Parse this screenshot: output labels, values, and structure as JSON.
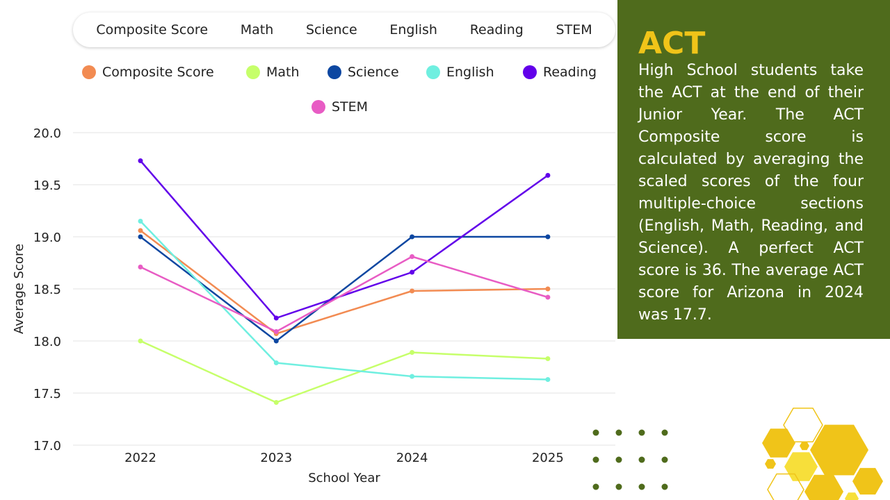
{
  "tabs": [
    "Composite Score",
    "Math",
    "Science",
    "English",
    "Reading",
    "STEM"
  ],
  "panel": {
    "title": "ACT",
    "body": "High School students take the ACT at the end of their Junior Year. The ACT Composite score is calculated by averaging the scaled scores of the four multiple-choice sections (English, Math, Reading, and Science). A perfect ACT score is 36. The average ACT score for Arizona in 2024 was 17.7."
  },
  "colors": {
    "panel_bg": "#4f6b1c",
    "title": "#f0c419",
    "dots": "#4f6b1c",
    "hex_gold": "#f0c419",
    "hex_light": "#f7df3a"
  },
  "chart_data": {
    "type": "line",
    "categories": [
      "2022",
      "2023",
      "2024",
      "2025"
    ],
    "xlabel": "School Year",
    "ylabel": "Average Score",
    "ylim": [
      17.0,
      20.0
    ],
    "yticks": [
      "17.0",
      "17.5",
      "18.0",
      "18.5",
      "19.0",
      "19.5",
      "20.0"
    ],
    "grid": true,
    "legend_position": "top",
    "series": [
      {
        "name": "Composite Score",
        "color": "#f28b52",
        "values": [
          19.06,
          18.07,
          18.48,
          18.5
        ]
      },
      {
        "name": "Math",
        "color": "#c6ff6a",
        "values": [
          18.0,
          17.41,
          17.89,
          17.83
        ]
      },
      {
        "name": "Science",
        "color": "#0d47a1",
        "values": [
          19.0,
          18.0,
          19.0,
          19.0
        ]
      },
      {
        "name": "English",
        "color": "#6fefe0",
        "values": [
          19.15,
          17.79,
          17.66,
          17.63
        ]
      },
      {
        "name": "Reading",
        "color": "#6200ea",
        "values": [
          19.73,
          18.22,
          18.66,
          19.59
        ]
      },
      {
        "name": "STEM",
        "color": "#e85cc4",
        "values": [
          18.71,
          18.09,
          18.81,
          18.42
        ]
      }
    ]
  }
}
